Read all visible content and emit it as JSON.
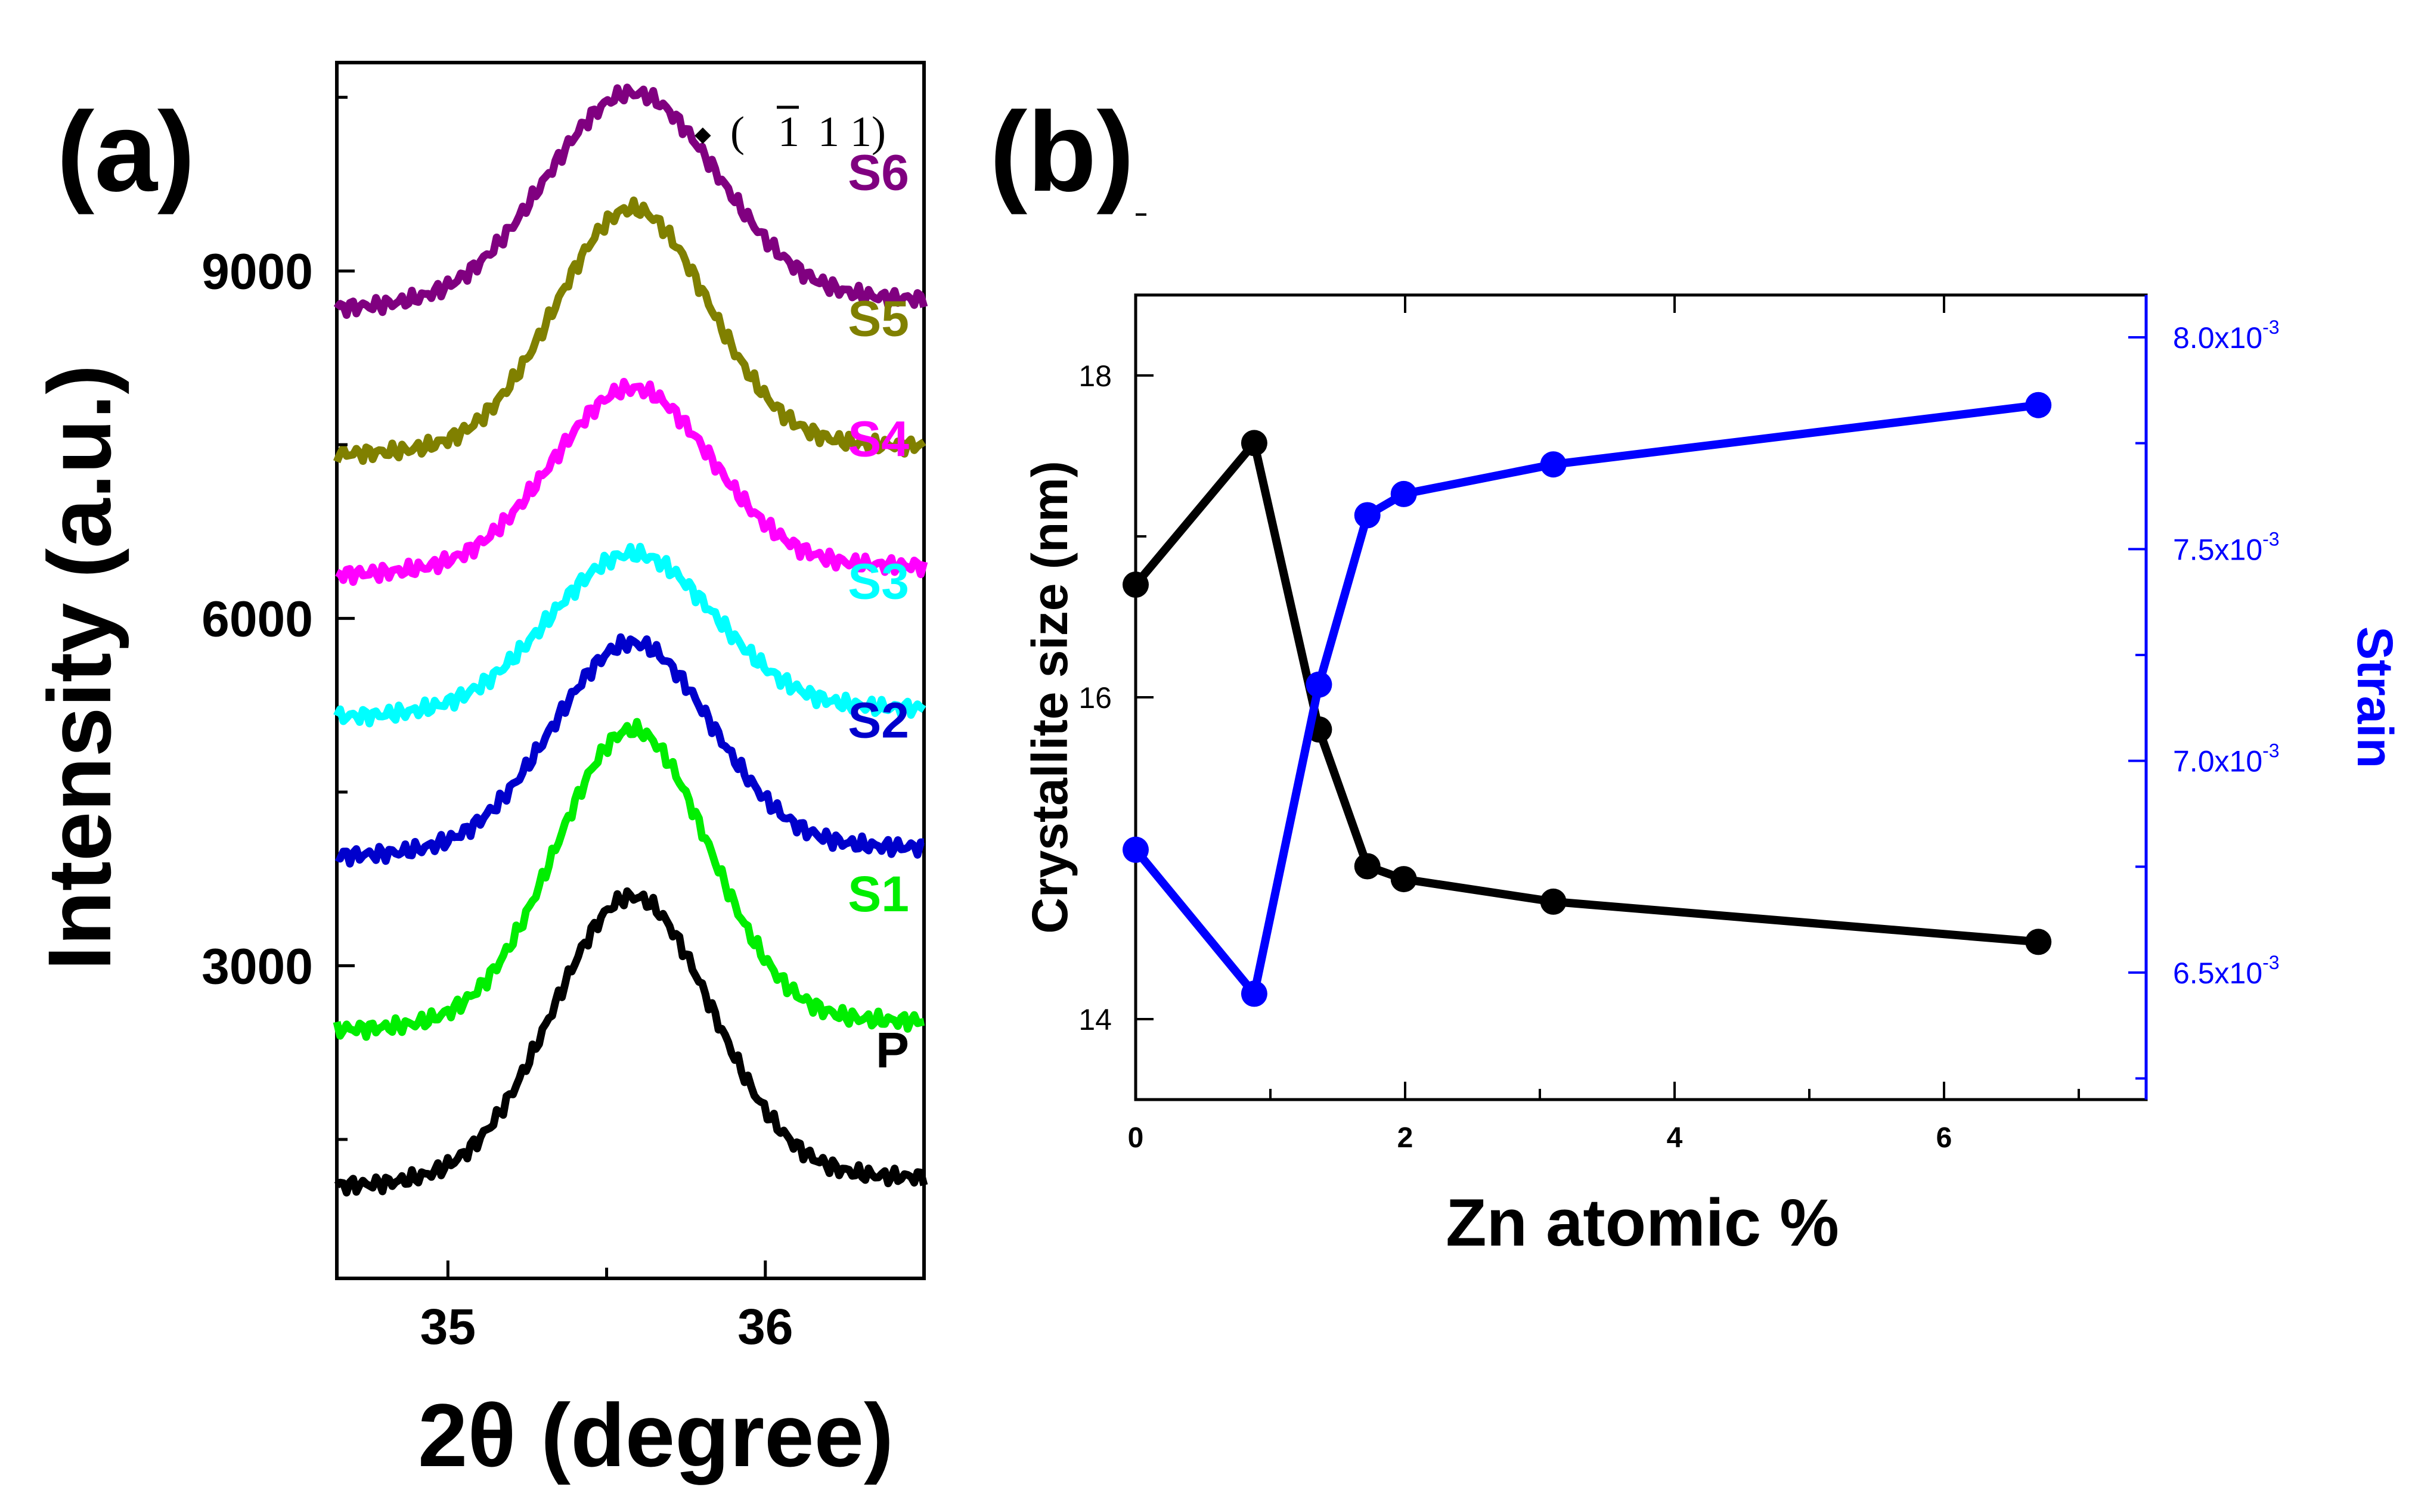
{
  "chart_data": [
    {
      "panel_label": "(a)",
      "type": "line",
      "xlabel": "2θ (degree)",
      "ylabel": "Intensity (a.u.)",
      "xlim": [
        34.65,
        36.5
      ],
      "ylim": [
        300,
        10800
      ],
      "x_ticks": [
        "35",
        "36"
      ],
      "y_ticks": [
        "3000",
        "6000",
        "9000"
      ],
      "peak_annotation": {
        "marker": "◆",
        "open": "(",
        "bar_digit": "1",
        "rest": "1 1)"
      },
      "peak_center": 35.58,
      "series": [
        {
          "name": "P",
          "color": "#000000",
          "baseline": 1100,
          "peak": 3560,
          "width": 0.25
        },
        {
          "name": "S1",
          "color": "#00ee00",
          "baseline": 2450,
          "peak": 5000,
          "width": 0.24
        },
        {
          "name": "S2",
          "color": "#0000cc",
          "baseline": 3950,
          "peak": 5750,
          "width": 0.25
        },
        {
          "name": "S3",
          "color": "#00ffff",
          "baseline": 5150,
          "peak": 6520,
          "width": 0.26
        },
        {
          "name": "S4",
          "color": "#ff00ff",
          "baseline": 6380,
          "peak": 7950,
          "width": 0.25
        },
        {
          "name": "S5",
          "color": "#808000",
          "baseline": 7420,
          "peak": 9500,
          "width": 0.24
        },
        {
          "name": "S6",
          "color": "#800080",
          "baseline": 8680,
          "peak": 10500,
          "width": 0.27
        }
      ]
    },
    {
      "panel_label": "(b)",
      "type": "line",
      "xlabel": "Zn atomic %",
      "ylabel": "Crystallite size (nm)",
      "ylabel_right": "Strain",
      "xlim": [
        0,
        7.5
      ],
      "ylim": [
        13.5,
        18.5
      ],
      "ylim_right": [
        0.0062,
        0.0081
      ],
      "x_ticks": [
        "0",
        "2",
        "4",
        "6"
      ],
      "y_ticks": [
        "14",
        "16",
        "18"
      ],
      "y_ticks_right": [
        {
          "value": 0.0065,
          "mantissa": "6.5x10",
          "exp": "-3"
        },
        {
          "value": 0.007,
          "mantissa": "7.0x10",
          "exp": "-3"
        },
        {
          "value": 0.0075,
          "mantissa": "7.5x10",
          "exp": "-3"
        },
        {
          "value": 0.008,
          "mantissa": "8.0x10",
          "exp": "-3"
        }
      ],
      "x": [
        0,
        0.88,
        1.36,
        1.72,
        1.99,
        3.1,
        6.7
      ],
      "series": [
        {
          "name": "Crystallite size",
          "axis": "left",
          "color": "#000000",
          "values": [
            16.7,
            17.58,
            15.8,
            14.95,
            14.87,
            14.73,
            14.48
          ]
        },
        {
          "name": "Strain",
          "axis": "right",
          "color": "#0000ff",
          "values": [
            0.00679,
            0.00645,
            0.00718,
            0.00758,
            0.00763,
            0.0077,
            0.00784
          ]
        }
      ]
    }
  ]
}
